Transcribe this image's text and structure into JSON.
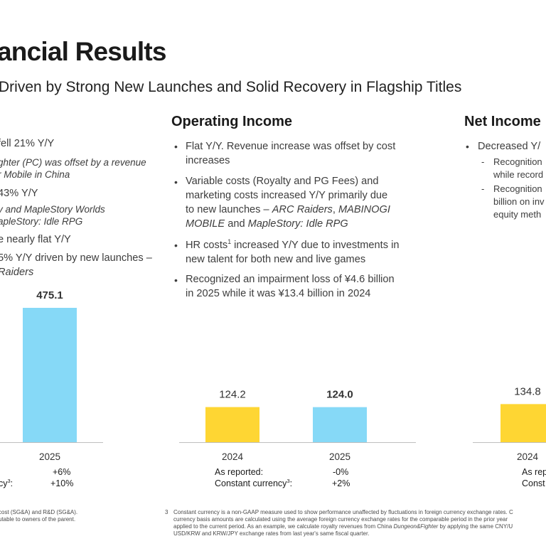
{
  "header": {
    "title": "ancial Results",
    "subtitle": "Driven by Strong New Launches and Solid Recovery in Flagship Titles"
  },
  "revenue": {
    "bullets": [
      {
        "kind": "line",
        "text": "fell 21% Y/Y"
      },
      {
        "kind": "line",
        "text": "ghter (PC) was offset by a revenue"
      },
      {
        "kind": "line",
        "text": "r Mobile in China"
      },
      {
        "kind": "line",
        "text": "43% Y/Y"
      },
      {
        "kind": "line",
        "text": "y and MapleStory Worlds"
      },
      {
        "kind": "line",
        "text": "apleStory: Idle RPG"
      },
      {
        "kind": "line",
        "text": "e nearly flat Y/Y"
      },
      {
        "kind": "line",
        "text": "5% Y/Y driven by new launches –"
      },
      {
        "kind": "line",
        "text": "Raiders"
      }
    ],
    "growth_rows": [
      {
        "label": "",
        "value": "+6%"
      },
      {
        "label": "cy",
        "sup": "3",
        "label_suffix": ":",
        "value": "+10%"
      }
    ]
  },
  "operating_income": {
    "heading": "Operating Income",
    "bullets": [
      {
        "lines": [
          "Flat Y/Y. Revenue increase was offset by cost",
          "increases"
        ]
      },
      {
        "lines": [
          "Variable costs (Royalty and PG Fees) and",
          "marketing costs increased Y/Y primarily due",
          "to new launches – ARC Raiders, MABINOGI",
          "MOBILE and MapleStory: Idle RPG"
        ]
      },
      {
        "lines": [
          "HR costs",
          "increased Y/Y due to investments in",
          "new talent for both new and live games"
        ],
        "sup": "1"
      },
      {
        "lines": [
          "Recognized an impairment loss of ¥4.6 billion",
          "in 2025 while it was ¥13.4 billion in 2024"
        ]
      }
    ],
    "growth_rows": [
      {
        "label": "As reported:",
        "value": "-0%"
      },
      {
        "label": "Constant currency",
        "sup": "3",
        "label_suffix": ":",
        "value": "+2%"
      }
    ]
  },
  "net_income": {
    "heading": "Net Income",
    "bullets": [
      {
        "kind": "bullet",
        "text": "Decreased Y/"
      },
      {
        "kind": "dash",
        "text": "Recognition"
      },
      {
        "kind": "cont",
        "text": "while record"
      },
      {
        "kind": "dash",
        "text": "Recognition"
      },
      {
        "kind": "cont",
        "text": "billion on inv"
      },
      {
        "kind": "cont",
        "text": "equity meth"
      }
    ],
    "growth_rows": [
      {
        "label": "As rep",
        "value": ""
      },
      {
        "label": "Const",
        "value": ""
      }
    ]
  },
  "footnotes": {
    "left": [
      "cost (SG&A) and R&D (SG&A).",
      "utable to owners of the parent."
    ],
    "right_num": "3",
    "right": [
      "Constant currency is a non-GAAP measure used to show performance unaffected by fluctuations in foreign currency exchange rates. C",
      "currency basis amounts are calculated using the average foreign currency exchange rates for the comparable period in the prior year",
      "applied to the current period. As an example, we calculate royalty revenues from China Dungeon&Fighter by applying the same CNY/U",
      "USD/KRW and KRW/JPY exchange rates from last year's same fiscal quarter."
    ]
  },
  "chart_data": [
    {
      "type": "bar",
      "panel": "revenue",
      "categories": [
        "2025"
      ],
      "values": [
        475.1
      ],
      "value_labels": [
        "475.1"
      ],
      "colors": [
        "#86d9f7"
      ]
    },
    {
      "type": "bar",
      "panel": "operating_income",
      "categories": [
        "2024",
        "2025"
      ],
      "values": [
        124.2,
        124.0
      ],
      "value_labels": [
        "124.2",
        "124.0"
      ],
      "colors": [
        "#fed633",
        "#86d9f7"
      ]
    },
    {
      "type": "bar",
      "panel": "net_income",
      "categories": [
        "2024"
      ],
      "values": [
        134.8
      ],
      "value_labels": [
        "134.8"
      ],
      "colors": [
        "#fed633"
      ]
    }
  ],
  "colors": {
    "bar_prior": "#fed633",
    "bar_current": "#86d9f7",
    "axis": "#bfbfbf"
  }
}
